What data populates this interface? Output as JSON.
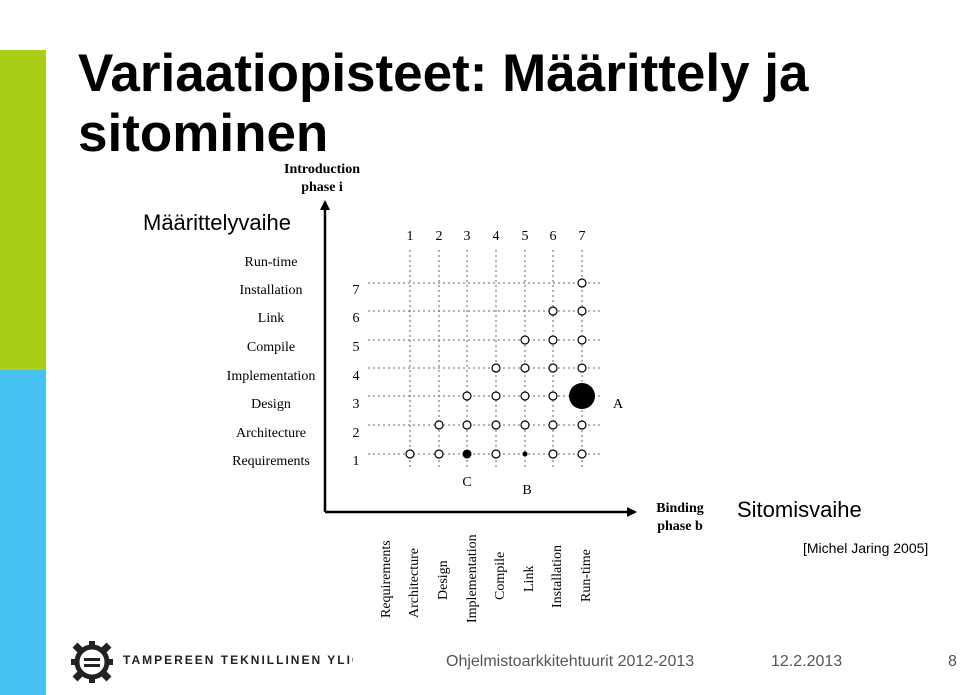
{
  "slide": {
    "title_line1": "Variaatiopisteet: Määrittely ja",
    "title_line2": "sitominen",
    "definition_label": "Määrittelyvaihe",
    "binding_label": "Sitomisvaihe",
    "citation": "[Michel Jaring 2005]"
  },
  "diagram": {
    "y_axis_title_line1": "Introduction",
    "y_axis_title_line2": "phase i",
    "x_axis_title_line1": "Binding",
    "x_axis_title_line2": "phase b",
    "phases": [
      "Requirements",
      "Architecture",
      "Design",
      "Implementation",
      "Compile",
      "Link",
      "Installation",
      "Run-time"
    ],
    "column_numbers": [
      "1",
      "2",
      "3",
      "4",
      "5",
      "6",
      "7"
    ],
    "row_numbers": [
      "1",
      "2",
      "3",
      "4",
      "5",
      "6",
      "7"
    ],
    "point_labels": {
      "A": "A",
      "B": "B",
      "C": "C"
    },
    "colors": {
      "ink": "#000000",
      "grid": "#666666"
    }
  },
  "footer": {
    "logo_text": "TAMPEREEN TEKNILLINEN YLIOPISTO",
    "course": "Ohjelmistoarkkitehtuurit 2012-2013",
    "date": "12.2.2013",
    "page": "8"
  }
}
